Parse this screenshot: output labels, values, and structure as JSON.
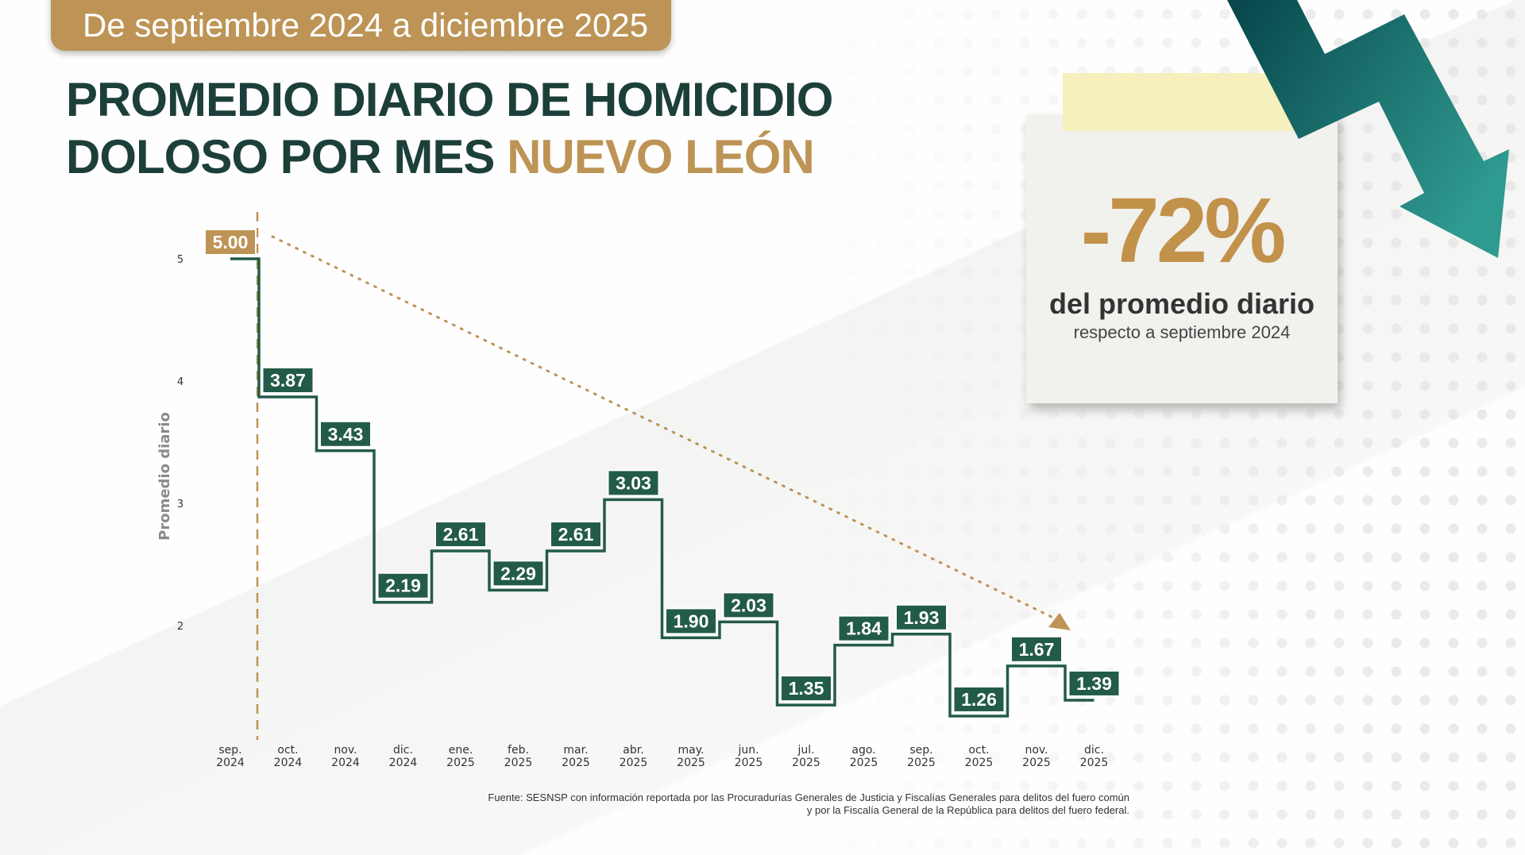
{
  "header": {
    "period": "De septiembre 2024 a diciembre 2025"
  },
  "title": {
    "line1": "PROMEDIO DIARIO DE HOMICIDIO",
    "line2_main": "DOLOSO POR MES",
    "line2_accent": "NUEVO LEÓN"
  },
  "note": {
    "percent": "-72%",
    "line1": "del promedio diario",
    "line2": "respecto a septiembre 2024"
  },
  "colors": {
    "green": "#235b4a",
    "tan": "#bd9456",
    "title": "#1d3f3a",
    "arrow_start": "#07454a",
    "arrow_end": "#2f9a8f"
  },
  "chart_data": {
    "type": "step-line",
    "ylabel": "Promedio diario",
    "yticks": [
      2,
      3,
      4,
      5
    ],
    "categories": [
      "sep.\n2024",
      "oct.\n2024",
      "nov.\n2024",
      "dic.\n2024",
      "ene.\n2025",
      "feb.\n2025",
      "mar.\n2025",
      "abr.\n2025",
      "may.\n2025",
      "jun.\n2025",
      "jul.\n2025",
      "ago.\n2025",
      "sep.\n2025",
      "oct.\n2025",
      "nov.\n2025",
      "dic.\n2025"
    ],
    "values": [
      5.0,
      3.87,
      3.43,
      2.19,
      2.61,
      2.29,
      2.61,
      3.03,
      1.9,
      2.03,
      1.35,
      1.84,
      1.93,
      1.26,
      1.67,
      1.39
    ],
    "labels": [
      "5.00",
      "3.87",
      "3.43",
      "2.19",
      "2.61",
      "2.29",
      "2.61",
      "3.03",
      "1.90",
      "2.03",
      "1.35",
      "1.84",
      "1.93",
      "1.26",
      "1.67",
      "1.39"
    ],
    "trend": "dotted arrow from sep. 2024 to dic. 2025",
    "grid": false
  },
  "source": {
    "line1": "Fuente: SESNSP con información reportada por las Procuradurías Generales de Justicia y Fiscalías Generales para delitos del fuero común",
    "line2": "y por la Fiscalía General de la República para delitos del fuero federal."
  }
}
